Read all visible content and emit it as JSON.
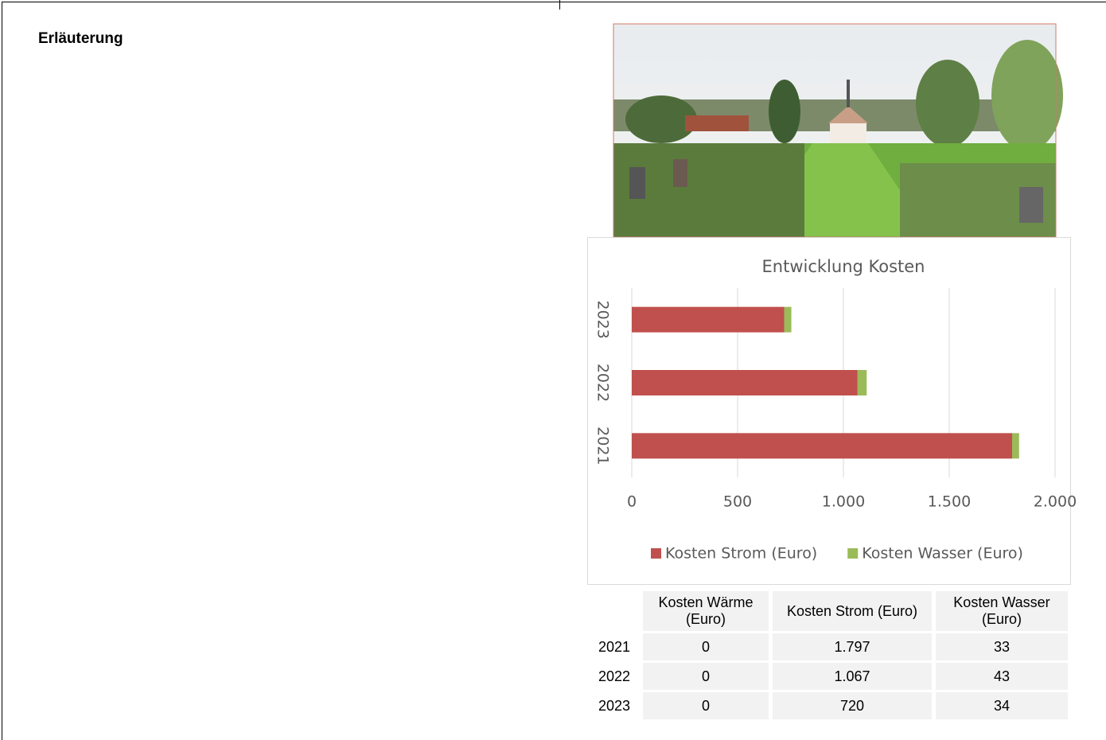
{
  "heading": "Erläuterung",
  "chart_data": {
    "type": "bar",
    "orientation": "horizontal",
    "stacked": true,
    "title": "Entwicklung Kosten",
    "categories": [
      "2021",
      "2022",
      "2023"
    ],
    "series": [
      {
        "name": "Kosten Strom (Euro)",
        "color": "#c0504d",
        "values": [
          1797,
          1067,
          720
        ]
      },
      {
        "name": "Kosten Wasser (Euro)",
        "color": "#9bbb59",
        "values": [
          33,
          43,
          34
        ]
      }
    ],
    "xlim": [
      0,
      2000
    ],
    "xticks": [
      0,
      500,
      {
        "value": 1000,
        "label": "1.000"
      },
      {
        "value": 1500,
        "label": "1.500"
      },
      {
        "value": 2000,
        "label": "2.000"
      }
    ],
    "grid": true,
    "legend": "bottom"
  },
  "table": {
    "columns": [
      "Kosten Wärme (Euro)",
      "Kosten Strom (Euro)",
      "Kosten Wasser (Euro)"
    ],
    "rows": [
      {
        "label": "2021",
        "cells": [
          "0",
          "1.797",
          "33"
        ]
      },
      {
        "label": "2022",
        "cells": [
          "0",
          "1.067",
          "43"
        ]
      },
      {
        "label": "2023",
        "cells": [
          "0",
          "720",
          "34"
        ]
      }
    ]
  }
}
